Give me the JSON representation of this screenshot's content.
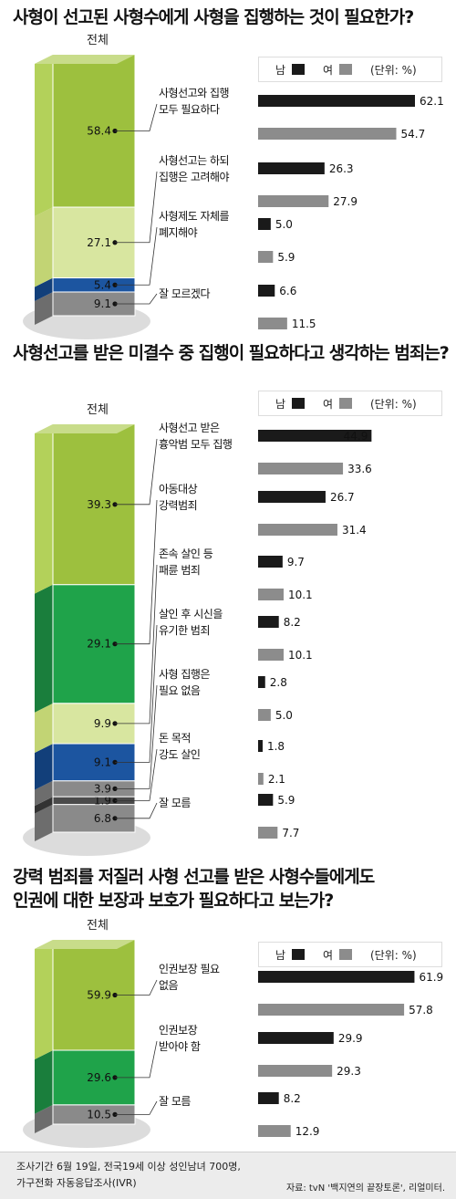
{
  "chart_data": [
    {
      "type": "bar",
      "title": "사형이 선고된 사형수에게 사형을 집행하는 것이 필요한가?",
      "stack_label": "전체",
      "legend": {
        "male": "남",
        "female": "여",
        "unit": "(단위: %)"
      },
      "colors": {
        "male": "#1a1a1a",
        "female": "#8c8c8c"
      },
      "categories": [
        {
          "label": [
            "사형선고와 집행",
            "모두 필요하다"
          ],
          "total": 58.4,
          "male": 62.1,
          "female": 54.7,
          "color": "#9dc03e",
          "light": "#b3d15a"
        },
        {
          "label": [
            "사형선고는 하되",
            "집행은 고려해야"
          ],
          "total": 27.1,
          "male": 26.3,
          "female": 27.9,
          "color": "#d8e6a0",
          "light": "#c2d474"
        },
        {
          "label": [
            "사형제도 자체를",
            "폐지해야"
          ],
          "total": 5.4,
          "male": 5.0,
          "female": 5.9,
          "color": "#1c55a0",
          "light": "#123f7a"
        },
        {
          "label": [
            "잘 모르겠다"
          ],
          "total": 9.1,
          "male": 6.6,
          "female": 11.5,
          "color": "#8a8a8a",
          "light": "#6d6d6d"
        }
      ]
    },
    {
      "type": "bar",
      "title": "사형선고를 받은 미결수 중 집행이 필요하다고 생각하는 범죄는?",
      "stack_label": "전체",
      "legend": {
        "male": "남",
        "female": "여",
        "unit": "(단위: %)"
      },
      "colors": {
        "male": "#1a1a1a",
        "female": "#8c8c8c"
      },
      "categories": [
        {
          "label": [
            "사형선고 받은",
            "흉악범 모두 집행"
          ],
          "total": 39.3,
          "male": 44.9,
          "female": 33.6,
          "color": "#9dc03e",
          "light": "#b3d15a"
        },
        {
          "label": [
            "아동대상",
            "강력범죄"
          ],
          "total": 29.1,
          "male": 26.7,
          "female": 31.4,
          "color": "#1fa34a",
          "light": "#1a7e3c"
        },
        {
          "label": [
            "존속 살인 등",
            "패륜 범죄"
          ],
          "total": 9.9,
          "male": 9.7,
          "female": 10.1,
          "color": "#d8e6a0",
          "light": "#c2d474"
        },
        {
          "label": [
            "살인 후 시신을",
            "유기한 범죄"
          ],
          "total": 9.1,
          "male": 8.2,
          "female": 10.1,
          "color": "#1c55a0",
          "light": "#123f7a"
        },
        {
          "label": [
            "사형 집행은",
            "필요 없음"
          ],
          "total": 3.9,
          "male": 2.8,
          "female": 5.0,
          "color": "#8a8a8a",
          "light": "#6d6d6d"
        },
        {
          "label": [
            "돈 목적",
            "강도 살인"
          ],
          "total": 1.9,
          "male": 1.8,
          "female": 2.1,
          "color": "#4a4a4a",
          "light": "#333333"
        },
        {
          "label": [
            "잘 모름"
          ],
          "total": 6.8,
          "male": 5.9,
          "female": 7.7,
          "color": "#8a8a8a",
          "light": "#6d6d6d"
        }
      ]
    },
    {
      "type": "bar",
      "title": "강력 범죄를 저질러 사형 선고를 받은 사형수들에게도 인권에 대한 보장과 보호가 필요하다고 보는가?",
      "title_lines": [
        "강력 범죄를 저질러 사형 선고를 받은 사형수들에게도",
        "인권에 대한 보장과 보호가 필요하다고 보는가?"
      ],
      "stack_label": "전체",
      "legend": {
        "male": "남",
        "female": "여",
        "unit": "(단위: %)"
      },
      "colors": {
        "male": "#1a1a1a",
        "female": "#8c8c8c"
      },
      "categories": [
        {
          "label": [
            "인권보장 필요",
            "없음"
          ],
          "total": 59.9,
          "male": 61.9,
          "female": 57.8,
          "color": "#9dc03e",
          "light": "#b3d15a"
        },
        {
          "label": [
            "인권보장",
            "받아야 함"
          ],
          "total": 29.6,
          "male": 29.9,
          "female": 29.3,
          "color": "#1fa34a",
          "light": "#1a7e3c"
        },
        {
          "label": [
            "잘 모름"
          ],
          "total": 10.5,
          "male": 8.2,
          "female": 12.9,
          "color": "#8a8a8a",
          "light": "#6d6d6d"
        }
      ]
    }
  ],
  "footer": {
    "line1": "조사기간 6월 19일, 전국19세 이상 성인남녀 700명,",
    "line2": "가구전화 자동응답조사(IVR)",
    "source": "자료: tvN '백지연의 끝장토론', 리얼미터."
  }
}
